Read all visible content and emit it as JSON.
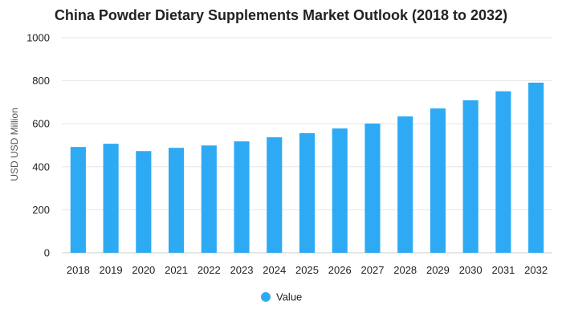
{
  "chart_data": {
    "type": "bar",
    "title": "China Powder Dietary Supplements Market Outlook (2018 to 2032)",
    "xlabel": "",
    "ylabel": "USD USD Million",
    "ylim": [
      0,
      1000
    ],
    "yticks": [
      0,
      200,
      400,
      600,
      800,
      1000
    ],
    "categories": [
      "2018",
      "2019",
      "2020",
      "2021",
      "2022",
      "2023",
      "2024",
      "2025",
      "2026",
      "2027",
      "2028",
      "2029",
      "2030",
      "2031",
      "2032"
    ],
    "series": [
      {
        "name": "Value",
        "color": "#2eaaf4",
        "values": [
          492,
          507,
          473,
          488,
          499,
          518,
          537,
          556,
          578,
          601,
          634,
          671,
          709,
          751,
          791
        ]
      }
    ],
    "grid": true,
    "legend_position": "bottom-center"
  }
}
